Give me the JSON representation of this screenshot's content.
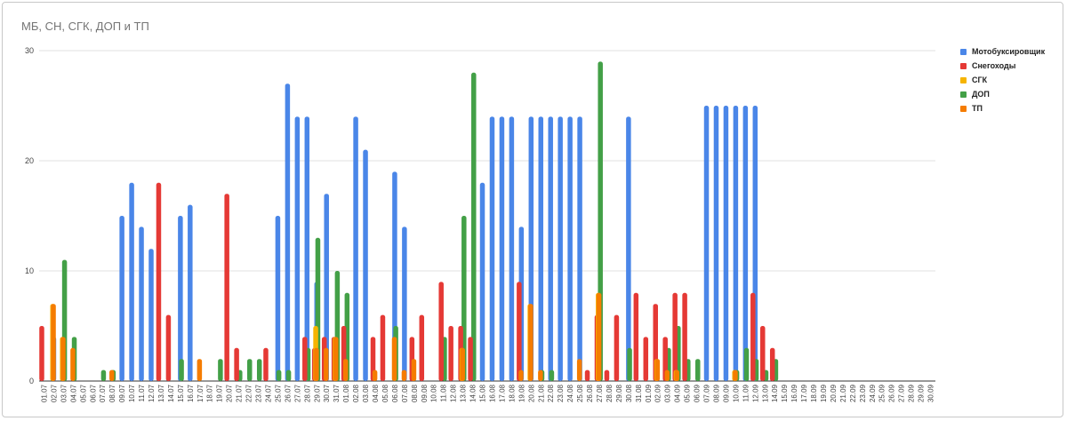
{
  "chart_data": {
    "type": "bar",
    "title": "МБ, СН, СГК, ДОП и ТП",
    "ylim": [
      0,
      30
    ],
    "yticks": [
      0,
      10,
      20,
      30
    ],
    "grid": true,
    "legend_position": "right",
    "categories": [
      "01.07",
      "02.07",
      "03.07",
      "04.07",
      "05.07",
      "06.07",
      "07.07",
      "08.07",
      "09.07",
      "10.07",
      "11.07",
      "12.07",
      "13.07",
      "14.07",
      "15.07",
      "16.07",
      "17.07",
      "18.07",
      "19.07",
      "20.07",
      "21.07",
      "22.07",
      "23.07",
      "24.07",
      "25.07",
      "26.07",
      "27.07",
      "28.07",
      "29.07",
      "30.07",
      "31.07",
      "01.08",
      "02.08",
      "03.08",
      "04.08",
      "05.08",
      "06.08",
      "07.08",
      "08.08",
      "09.08",
      "10.08",
      "11.08",
      "12.08",
      "13.08",
      "14.08",
      "15.08",
      "16.08",
      "17.08",
      "18.08",
      "19.08",
      "20.08",
      "21.08",
      "22.08",
      "23.08",
      "24.08",
      "25.08",
      "26.08",
      "27.08",
      "28.08",
      "29.08",
      "30.08",
      "31.08",
      "01.09",
      "02.09",
      "03.09",
      "04.09",
      "05.09",
      "06.09",
      "07.09",
      "08.09",
      "09.09",
      "10.09",
      "11.09",
      "12.09",
      "13.09",
      "14.09",
      "15.09",
      "16.09",
      "17.09",
      "18.09",
      "19.09",
      "20.09",
      "21.09",
      "22.09",
      "23.09",
      "24.09",
      "25.09",
      "26.09",
      "27.09",
      "28.09",
      "29.09",
      "30.09"
    ],
    "series": [
      {
        "name": "Мотобуксировщик",
        "color": "#4a86e8",
        "values": [
          0,
          4,
          0,
          0,
          0,
          0,
          0,
          0,
          15,
          18,
          14,
          12,
          0,
          0,
          15,
          16,
          0,
          0,
          0,
          0,
          0,
          0,
          0,
          0,
          15,
          27,
          24,
          24,
          9,
          17,
          0,
          0,
          24,
          21,
          0,
          0,
          19,
          14,
          0,
          0,
          0,
          0,
          0,
          0,
          0,
          18,
          24,
          24,
          24,
          14,
          24,
          24,
          24,
          24,
          24,
          24,
          0,
          0,
          0,
          0,
          24,
          0,
          0,
          0,
          0,
          0,
          0,
          0,
          25,
          25,
          25,
          25,
          25,
          25,
          0,
          0,
          0,
          0,
          0,
          0,
          0,
          0,
          0,
          0,
          0,
          0,
          0,
          0,
          0,
          0,
          0,
          0
        ]
      },
      {
        "name": "Снегоходы",
        "color": "#e53935",
        "values": [
          5,
          0,
          0,
          0,
          0,
          0,
          0,
          0,
          0,
          0,
          0,
          0,
          18,
          6,
          0,
          0,
          0,
          0,
          0,
          17,
          3,
          0,
          0,
          3,
          0,
          0,
          0,
          4,
          3,
          4,
          4,
          5,
          0,
          0,
          4,
          6,
          0,
          0,
          4,
          6,
          0,
          9,
          5,
          5,
          4,
          0,
          0,
          0,
          0,
          9,
          0,
          0,
          0,
          0,
          0,
          0,
          1,
          6,
          1,
          6,
          0,
          8,
          4,
          7,
          4,
          8,
          8,
          0,
          0,
          0,
          0,
          0,
          0,
          8,
          5,
          3,
          0,
          0,
          0,
          0,
          0,
          0,
          0,
          0,
          0,
          0,
          0,
          0,
          0,
          0,
          0,
          0
        ]
      },
      {
        "name": "СГК",
        "color": "#f6b400",
        "values": [
          0,
          7,
          4,
          0,
          0,
          0,
          0,
          0,
          0,
          0,
          0,
          0,
          0,
          0,
          0,
          0,
          0,
          0,
          0,
          0,
          0,
          0,
          0,
          0,
          0,
          0,
          0,
          0,
          5,
          0,
          4,
          0,
          0,
          0,
          0,
          0,
          0,
          0,
          0,
          0,
          0,
          0,
          0,
          3,
          0,
          0,
          0,
          0,
          0,
          0,
          7,
          0,
          0,
          0,
          0,
          0,
          0,
          8,
          0,
          0,
          0,
          0,
          0,
          2,
          0,
          1,
          0,
          0,
          0,
          0,
          0,
          1,
          0,
          0,
          0,
          0,
          0,
          0,
          0,
          0,
          0,
          0,
          0,
          0,
          0,
          0,
          0,
          0,
          0,
          0,
          0,
          0
        ]
      },
      {
        "name": "ДОП",
        "color": "#43a047",
        "values": [
          0,
          0,
          11,
          4,
          0,
          0,
          1,
          1,
          0,
          0,
          0,
          0,
          0,
          0,
          2,
          0,
          0,
          0,
          2,
          0,
          1,
          2,
          2,
          0,
          1,
          1,
          0,
          3,
          13,
          0,
          10,
          8,
          0,
          0,
          0,
          0,
          5,
          0,
          0,
          0,
          0,
          4,
          0,
          15,
          28,
          0,
          0,
          0,
          0,
          0,
          0,
          1,
          1,
          0,
          0,
          0,
          0,
          29,
          0,
          0,
          3,
          0,
          0,
          0,
          3,
          5,
          2,
          2,
          0,
          0,
          0,
          1,
          3,
          2,
          1,
          2,
          0,
          0,
          0,
          0,
          0,
          0,
          0,
          0,
          0,
          0,
          0,
          0,
          0,
          0,
          0,
          0
        ]
      },
      {
        "name": "ТП",
        "color": "#f57c00",
        "values": [
          0,
          7,
          4,
          3,
          0,
          0,
          0,
          1,
          0,
          0,
          0,
          0,
          0,
          0,
          0,
          0,
          2,
          0,
          0,
          0,
          0,
          0,
          0,
          0,
          0,
          0,
          0,
          0,
          3,
          3,
          4,
          2,
          0,
          0,
          1,
          0,
          4,
          1,
          2,
          0,
          0,
          0,
          0,
          3,
          0,
          0,
          0,
          0,
          0,
          1,
          7,
          1,
          0,
          0,
          0,
          2,
          0,
          8,
          0,
          0,
          0,
          0,
          0,
          2,
          1,
          1,
          0,
          0,
          0,
          0,
          0,
          1,
          0,
          0,
          0,
          0,
          0,
          0,
          0,
          0,
          0,
          0,
          0,
          0,
          0,
          0,
          0,
          0,
          0,
          0,
          0,
          0
        ]
      }
    ]
  }
}
